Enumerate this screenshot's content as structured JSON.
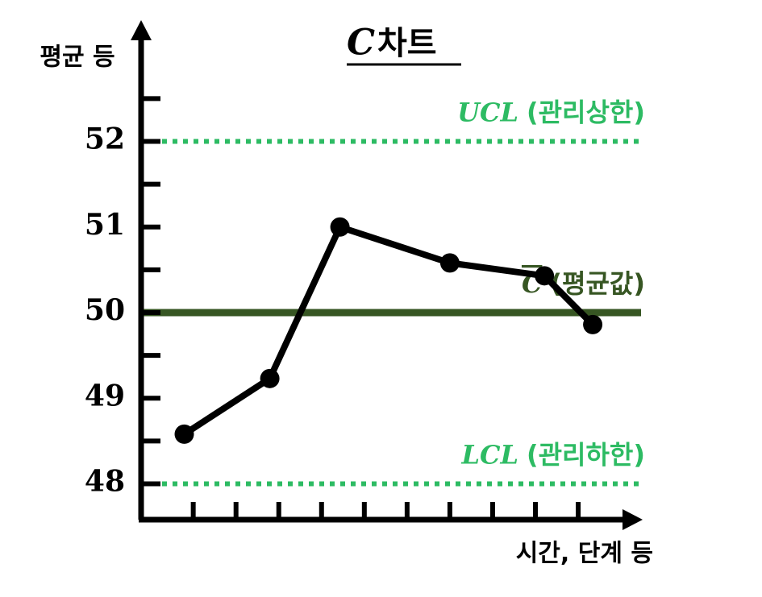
{
  "chart_data": {
    "type": "line",
    "title": {
      "symbol": "C",
      "text": "차트"
    },
    "y_label": "평균 등",
    "x_label": "시간, 단계 등",
    "xlim": [
      -0.2,
      11.3
    ],
    "xticks": [
      1,
      2,
      3,
      4,
      5,
      6,
      7,
      8,
      9,
      10
    ],
    "ylim": [
      47.6,
      53.2
    ],
    "yticks": [
      48,
      49,
      50,
      51,
      52
    ],
    "minor_yticks": [
      48.5,
      49.5,
      50.5,
      51.5,
      52.5
    ],
    "series": [
      {
        "color": "#000000",
        "x": [
          0.79,
          2.79,
          4.43,
          7.0,
          9.21,
          10.34
        ],
        "values": [
          48.58,
          49.23,
          51.0,
          50.58,
          50.43,
          49.86
        ]
      }
    ],
    "reference_lines": [
      {
        "symbol": "UCL",
        "label": "(관리상한)",
        "value": 52,
        "color": "#2dbb63",
        "style": "dotted"
      },
      {
        "symbol": "C",
        "label": "(평균값)",
        "value": 50,
        "color": "#375623",
        "style": "solid"
      },
      {
        "symbol": "LCL",
        "label": "(관리하한)",
        "value": 48,
        "color": "#2dbb63",
        "style": "dotted"
      }
    ]
  }
}
